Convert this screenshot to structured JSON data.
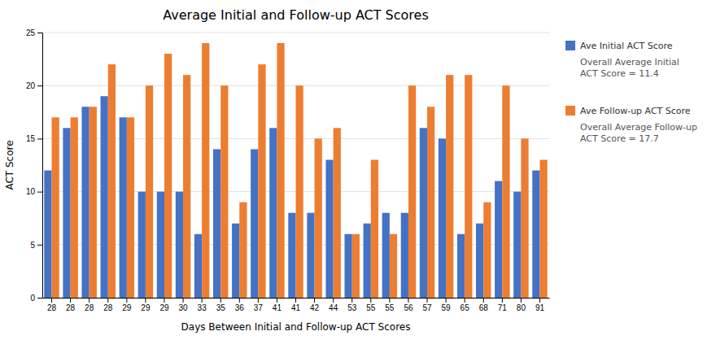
{
  "chart_data": {
    "type": "bar",
    "title": "Average Initial and Follow-up ACT Scores",
    "x_label": "Days Between Initial and Follow-up ACT Scores",
    "y_label": "ACT Score",
    "categories": [
      "28",
      "28",
      "28",
      "28",
      "29",
      "29",
      "29",
      "30",
      "33",
      "35",
      "36",
      "37",
      "41",
      "41",
      "42",
      "44",
      "53",
      "55",
      "55",
      "56",
      "57",
      "59",
      "65",
      "68",
      "71",
      "80",
      "91"
    ],
    "series": [
      {
        "name": "Ave Initial ACT Score",
        "color": "#4472C4",
        "values": [
          12,
          16,
          18,
          19,
          17,
          10,
          10,
          10,
          6,
          14,
          7,
          14,
          16,
          8,
          8,
          13,
          6,
          7,
          8,
          8,
          16,
          15,
          6,
          7,
          11,
          10,
          12
        ]
      },
      {
        "name": "Ave Follow-up ACT Score",
        "color": "#ED7D31",
        "values": [
          17,
          17,
          18,
          22,
          17,
          20,
          23,
          21,
          24,
          20,
          9,
          22,
          24,
          20,
          15,
          16,
          6,
          13,
          6,
          20,
          18,
          21,
          21,
          9,
          20,
          15,
          13
        ]
      }
    ],
    "annotations": [
      "Overall Average Initial\nACT Score = 11.4",
      "Overall Average Follow-up\nACT Score = 17.7"
    ],
    "ylim": [
      0,
      25
    ],
    "yticks": [
      0,
      5,
      10,
      15,
      20,
      25
    ],
    "grid": true,
    "legend": "right"
  }
}
